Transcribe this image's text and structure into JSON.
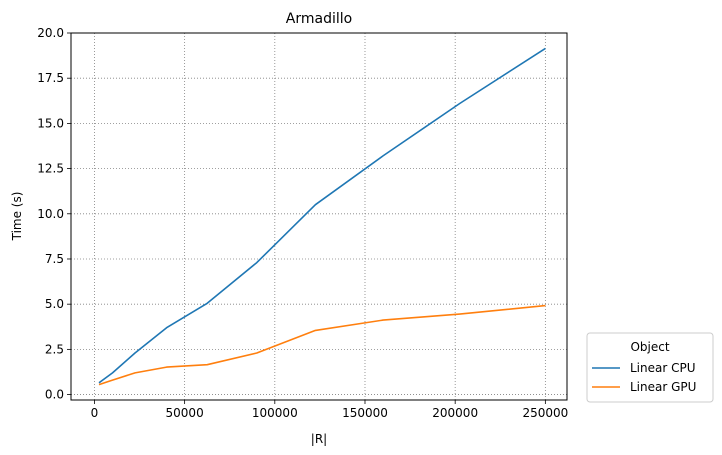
{
  "chart_data": {
    "type": "line",
    "title": "Armadillo",
    "xlabel": "|R|",
    "ylabel": "Time (s)",
    "xlim": [
      -13000,
      262000
    ],
    "ylim": [
      -0.3,
      20.0
    ],
    "xticks": [
      0,
      50000,
      100000,
      150000,
      200000,
      250000
    ],
    "xtick_labels": [
      "0",
      "50000",
      "100000",
      "150000",
      "200000",
      "250000"
    ],
    "yticks": [
      0.0,
      2.5,
      5.0,
      7.5,
      10.0,
      12.5,
      15.0,
      17.5,
      20.0
    ],
    "ytick_labels": [
      "0.0",
      "2.5",
      "5.0",
      "7.5",
      "10.0",
      "12.5",
      "15.0",
      "17.5",
      "20.0"
    ],
    "grid": true,
    "legend": {
      "title": "Object",
      "placement": "lower-right-outside"
    },
    "series": [
      {
        "name": "Linear CPU",
        "color": "#1f77b4",
        "x": [
          2500,
          10000,
          22500,
          40000,
          62500,
          90000,
          122500,
          160000,
          202500,
          250000
        ],
        "y": [
          0.65,
          1.2,
          2.3,
          3.7,
          5.05,
          7.3,
          10.5,
          13.2,
          16.1,
          19.15
        ]
      },
      {
        "name": "Linear GPU",
        "color": "#ff7f0e",
        "x": [
          2500,
          10000,
          22500,
          40000,
          62500,
          90000,
          122500,
          160000,
          202500,
          250000
        ],
        "y": [
          0.55,
          0.8,
          1.2,
          1.52,
          1.65,
          2.3,
          3.55,
          4.12,
          4.45,
          4.92
        ]
      }
    ]
  }
}
